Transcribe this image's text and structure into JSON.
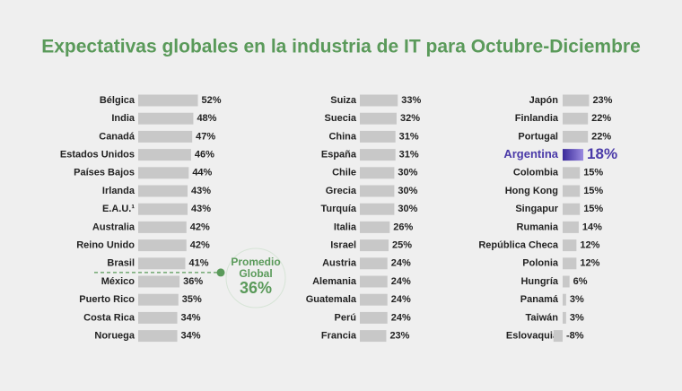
{
  "chart_data": [
    {
      "type": "bar",
      "orientation": "horizontal",
      "title": "Expectativas globales en la industria de IT para Octubre-Diciembre",
      "categories": [
        "Bélgica",
        "India",
        "Canadá",
        "Estados Unidos",
        "Países Bajos",
        "Irlanda",
        "E.A.U.¹",
        "Australia",
        "Reino Unido",
        "Brasil",
        "México",
        "Puerto Rico",
        "Costa Rica",
        "Noruega"
      ],
      "values": [
        52,
        48,
        47,
        46,
        44,
        43,
        43,
        42,
        42,
        41,
        36,
        35,
        34,
        34
      ],
      "value_labels": [
        "52%",
        "48%",
        "47%",
        "46%",
        "44%",
        "43%",
        "43%",
        "42%",
        "42%",
        "41%",
        "36%",
        "35%",
        "34%",
        "34%"
      ],
      "color": "#c8c8c8",
      "annotation": {
        "label_lines": [
          "Promedio",
          "Global"
        ],
        "value": 36,
        "value_label": "36%",
        "color": "#5a9a5a"
      }
    },
    {
      "type": "bar",
      "orientation": "horizontal",
      "categories": [
        "Suiza",
        "Suecia",
        "China",
        "España",
        "Chile",
        "Grecia",
        "Turquía",
        "Italia",
        "Israel",
        "Austria",
        "Alemania",
        "Guatemala",
        "Perú",
        "Francia"
      ],
      "values": [
        33,
        32,
        31,
        31,
        30,
        30,
        30,
        26,
        25,
        24,
        24,
        24,
        24,
        23
      ],
      "value_labels": [
        "33%",
        "32%",
        "31%",
        "31%",
        "30%",
        "30%",
        "30%",
        "26%",
        "25%",
        "24%",
        "24%",
        "24%",
        "24%",
        "23%"
      ],
      "color": "#c8c8c8"
    },
    {
      "type": "bar",
      "orientation": "horizontal",
      "categories": [
        "Japón",
        "Finlandia",
        "Portugal",
        "Argentina",
        "Colombia",
        "Hong Kong",
        "Singapur",
        "Rumania",
        "República Checa",
        "Polonia",
        "Hungría",
        "Panamá",
        "Taiwán",
        "Eslovaquia"
      ],
      "values": [
        23,
        22,
        22,
        18,
        15,
        15,
        15,
        14,
        12,
        12,
        6,
        3,
        3,
        -8
      ],
      "value_labels": [
        "23%",
        "22%",
        "22%",
        "18%",
        "15%",
        "15%",
        "15%",
        "14%",
        "12%",
        "12%",
        "6%",
        "3%",
        "3%",
        "-8%"
      ],
      "color": "#c8c8c8",
      "highlight": "Argentina",
      "highlight_color": "#4a3aa8"
    }
  ]
}
